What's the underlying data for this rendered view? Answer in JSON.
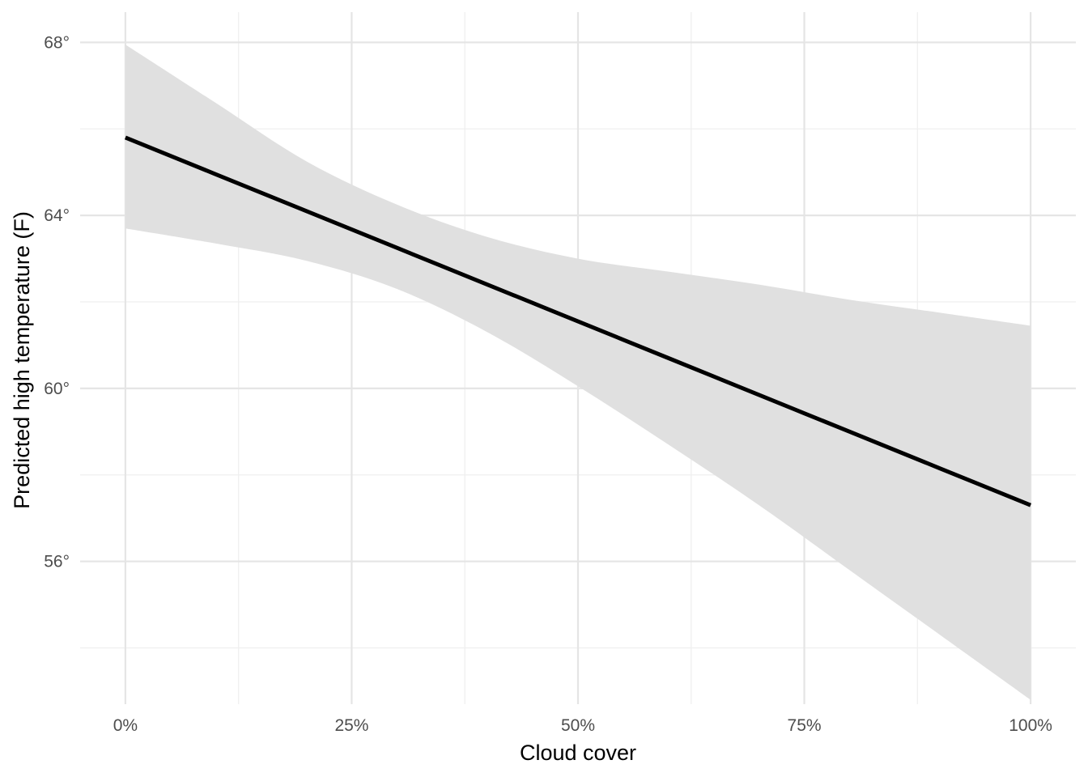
{
  "chart_data": {
    "type": "line",
    "xlabel": "Cloud cover",
    "ylabel": "Predicted high temperature (F)",
    "x_ticks": [
      {
        "value": 0,
        "label": "0%"
      },
      {
        "value": 0.25,
        "label": "25%"
      },
      {
        "value": 0.5,
        "label": "50%"
      },
      {
        "value": 0.75,
        "label": "75%"
      },
      {
        "value": 1,
        "label": "100%"
      }
    ],
    "x_minor_ticks": [
      0.125,
      0.375,
      0.625,
      0.875
    ],
    "y_ticks": [
      {
        "value": 56,
        "label": "56°"
      },
      {
        "value": 60,
        "label": "60°"
      },
      {
        "value": 64,
        "label": "64°"
      },
      {
        "value": 68,
        "label": "68°"
      }
    ],
    "y_minor_ticks": [
      54,
      58,
      62,
      66
    ],
    "xlim": [
      -0.05,
      1.05
    ],
    "ylim": [
      52.7,
      68.7
    ],
    "grid": true,
    "line_color": "#000000",
    "band_color": "#e0e0e0",
    "series": [
      {
        "x": [
          0,
          0.1,
          0.2,
          0.3,
          0.4,
          0.5,
          0.6,
          0.7,
          0.8,
          0.9,
          1.0
        ],
        "y": [
          65.8,
          64.95,
          64.1,
          63.25,
          62.4,
          61.55,
          60.7,
          59.85,
          59.0,
          58.15,
          57.3
        ],
        "lower": [
          63.7,
          63.35,
          62.95,
          62.3,
          61.3,
          60.05,
          58.7,
          57.3,
          55.8,
          54.3,
          52.8
        ],
        "upper": [
          67.95,
          66.6,
          65.25,
          64.25,
          63.5,
          63.0,
          62.7,
          62.4,
          62.05,
          61.75,
          61.45
        ]
      }
    ]
  }
}
